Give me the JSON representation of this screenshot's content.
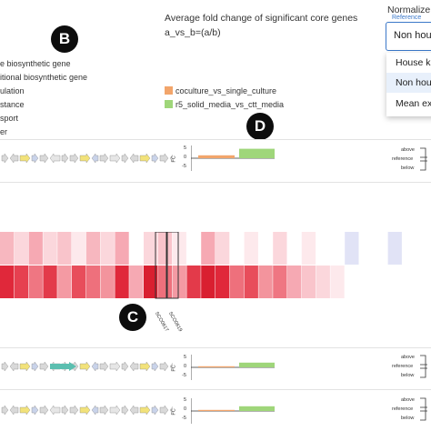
{
  "badges": {
    "b": "B",
    "c": "C",
    "d": "D"
  },
  "fold_change": {
    "title": "Average fold change of significant core genes",
    "subtitle": "a_vs_b=(a/b)"
  },
  "normalize": {
    "label": "Normalize",
    "floating_label": "Reference",
    "selected": "Non hou",
    "options": [
      "House k",
      "Non hou",
      "Mean ex"
    ]
  },
  "gene_legend": [
    "e biosynthetic gene",
    "itional biosynthetic gene",
    "ulation",
    "stance",
    "sport",
    "er"
  ],
  "comparison_legend": [
    {
      "label": "coculture_vs_single_culture",
      "color": "#f2a56b"
    },
    {
      "label": "r5_solid_media_vs_ctt_media",
      "color": "#9fd67a"
    }
  ],
  "fc_axis": {
    "label": "FC",
    "ticks": [
      "5",
      "0",
      "-5"
    ]
  },
  "ref_legend": [
    "above",
    "reference",
    "below"
  ],
  "cluster_bars": [
    {
      "coculture": 0.8,
      "r5": 2.6
    },
    {
      "coculture": 0.3,
      "r5": 1.3
    },
    {
      "coculture": 0.3,
      "r5": 1.3
    }
  ],
  "heatmap": {
    "labels": [
      "SCO0617",
      "SCO0619"
    ]
  },
  "colors": {
    "accent": "#3b78c9",
    "heat_strong": "#e0283a",
    "heat_light": "#f7b7bf",
    "arrow_teal": "#5bbfb0",
    "arrow_yellow": "#f2e27a"
  }
}
